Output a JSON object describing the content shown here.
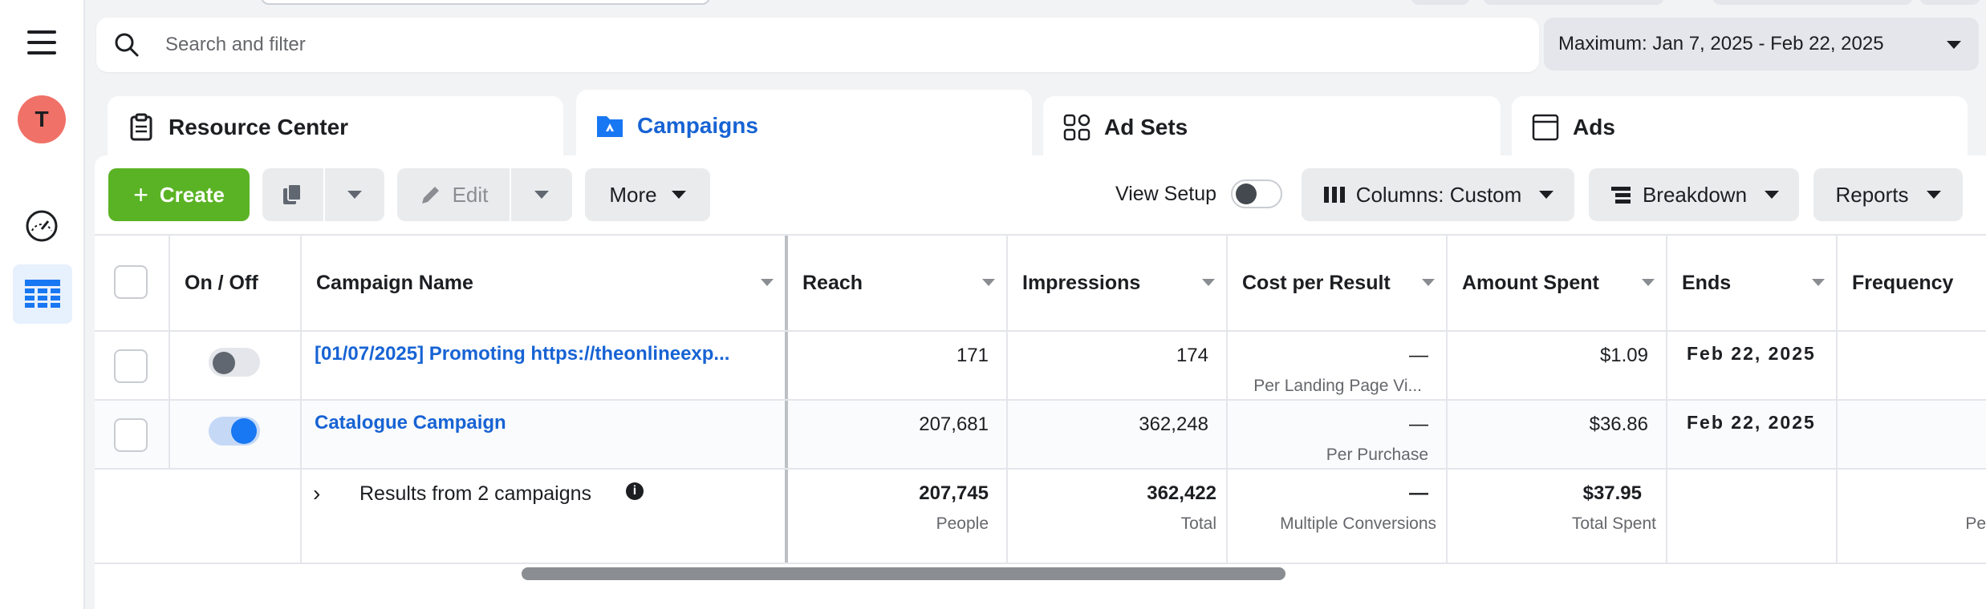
{
  "search": {
    "placeholder": "Search and filter"
  },
  "date_range": {
    "label": "Maximum: Jan 7, 2025 - Feb 22, 2025"
  },
  "rail": {
    "avatar_letter": "T"
  },
  "tabs": [
    {
      "label": "Resource Center",
      "icon": "clipboard-icon"
    },
    {
      "label": "Campaigns",
      "icon": "folder-icon",
      "active": true
    },
    {
      "label": "Ad Sets",
      "icon": "grid-icon"
    },
    {
      "label": "Ads",
      "icon": "window-icon"
    }
  ],
  "toolbar": {
    "create_label": "Create",
    "edit_label": "Edit",
    "more_label": "More",
    "view_setup_label": "View Setup",
    "columns_label": "Columns: Custom",
    "breakdown_label": "Breakdown",
    "reports_label": "Reports"
  },
  "columns": [
    "On / Off",
    "Campaign Name",
    "Reach",
    "Impressions",
    "Cost per Result",
    "Amount Spent",
    "Ends",
    "Frequency"
  ],
  "rows": [
    {
      "on": false,
      "name": "[01/07/2025] Promoting https://theonlineexp...",
      "reach": "171",
      "impressions": "174",
      "cost_per_result": "—",
      "cost_per_result_sub": "Per Landing Page Vi...",
      "amount_spent": "$1.09",
      "ends": "Feb 22, 2025"
    },
    {
      "on": true,
      "name": "Catalogue Campaign",
      "reach": "207,681",
      "impressions": "362,248",
      "cost_per_result": "—",
      "cost_per_result_sub": "Per Purchase",
      "amount_spent": "$36.86",
      "ends": "Feb 22, 2025"
    }
  ],
  "summary": {
    "label": "Results from 2 campaigns",
    "reach": "207,745",
    "reach_sub": "People",
    "impressions": "362,422",
    "impressions_sub": "Total",
    "cost_per_result": "—",
    "cost_per_result_sub": "Multiple Conversions",
    "amount_spent": "$37.95",
    "amount_spent_sub": "Total Spent",
    "frequency_sub": "Pe"
  },
  "colors": {
    "accent": "#1763d4",
    "create": "#5ab324",
    "avatar": "#f07167"
  }
}
